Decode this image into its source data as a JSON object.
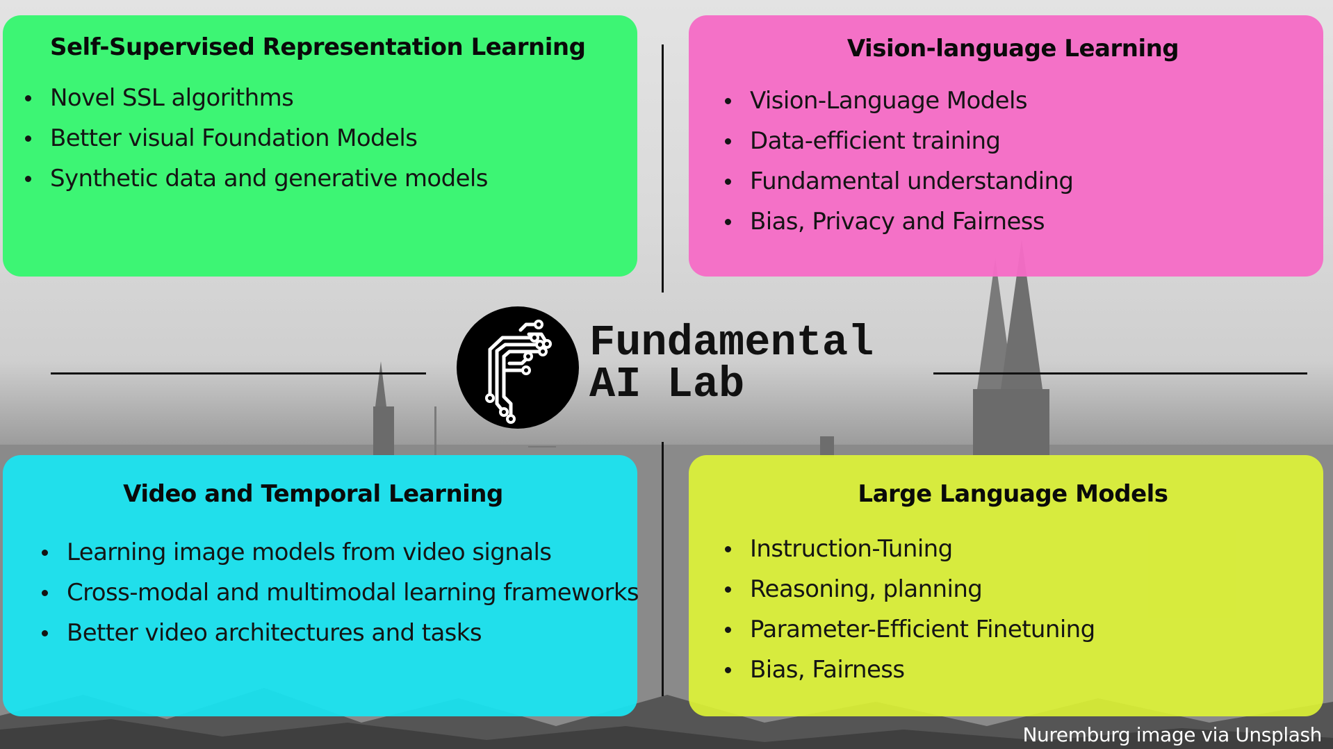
{
  "cards": {
    "top_left": {
      "title": "Self-Supervised Representation Learning",
      "color": "#38f671",
      "items": [
        "Novel SSL algorithms",
        "Better visual Foundation Models",
        "Synthetic data and generative models"
      ]
    },
    "top_right": {
      "title": "Vision-language Learning",
      "color": "#f56cc6",
      "items": [
        "Vision-Language Models",
        "Data-efficient training",
        "Fundamental understanding",
        "Bias, Privacy and Fairness"
      ]
    },
    "bottom_left": {
      "title": "Video and Temporal Learning",
      "color": "#19e5f2",
      "items": [
        "Learning image models from video signals",
        "Cross-modal and multimodal learning frameworks",
        "Better video architectures and tasks"
      ]
    },
    "bottom_right": {
      "title": "Large Language  Models",
      "color": "#dff535",
      "items": [
        "Instruction-Tuning",
        "Reasoning, planning",
        "Parameter-Efficient Finetuning",
        "Bias, Fairness"
      ]
    }
  },
  "logo": {
    "icon": "circuit-letter-f-icon",
    "name_line1": "Fundamental",
    "name_line2": "AI Lab"
  },
  "credit": "Nuremburg image via Unsplash"
}
